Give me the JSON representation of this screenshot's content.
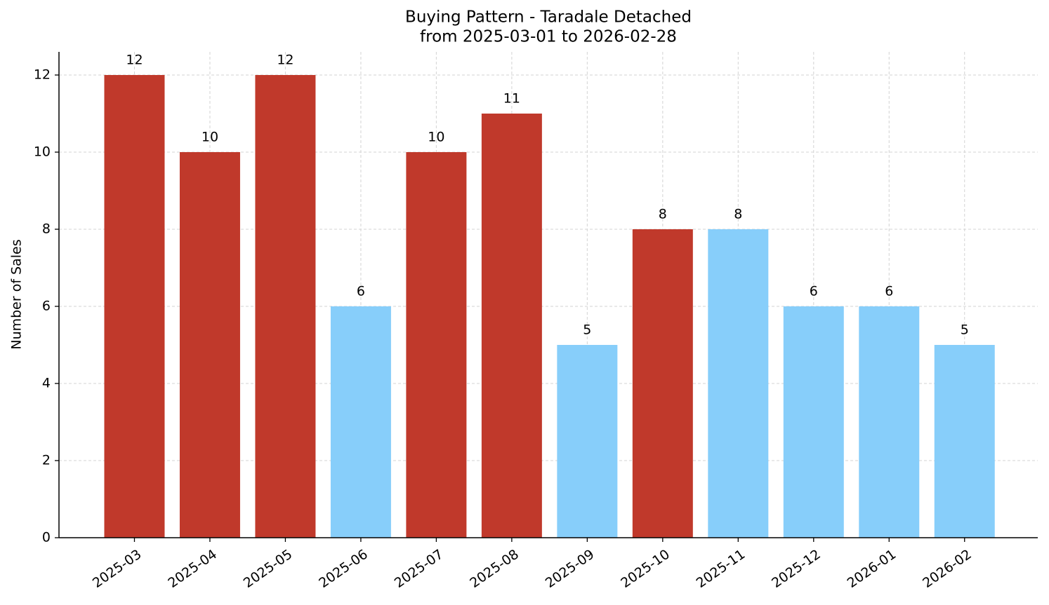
{
  "chart_data": {
    "type": "bar",
    "title": "Buying Pattern - Taradale Detached",
    "subtitle": "from 2025-03-01 to 2026-02-28",
    "y_label": "Number of Sales",
    "categories": [
      "2025-03",
      "2025-04",
      "2025-05",
      "2025-06",
      "2025-07",
      "2025-08",
      "2025-09",
      "2025-10",
      "2025-11",
      "2025-12",
      "2026-01",
      "2026-02"
    ],
    "values": [
      12,
      10,
      12,
      6,
      10,
      11,
      5,
      8,
      8,
      6,
      6,
      5
    ],
    "colors": [
      "#c0392b",
      "#c0392b",
      "#c0392b",
      "#87cefa",
      "#c0392b",
      "#c0392b",
      "#87cefa",
      "#c0392b",
      "#87cefa",
      "#87cefa",
      "#87cefa",
      "#87cefa"
    ],
    "ylim": [
      0,
      12.6
    ],
    "yticks": [
      0,
      2,
      4,
      6,
      8,
      10,
      12
    ],
    "grid": true
  }
}
